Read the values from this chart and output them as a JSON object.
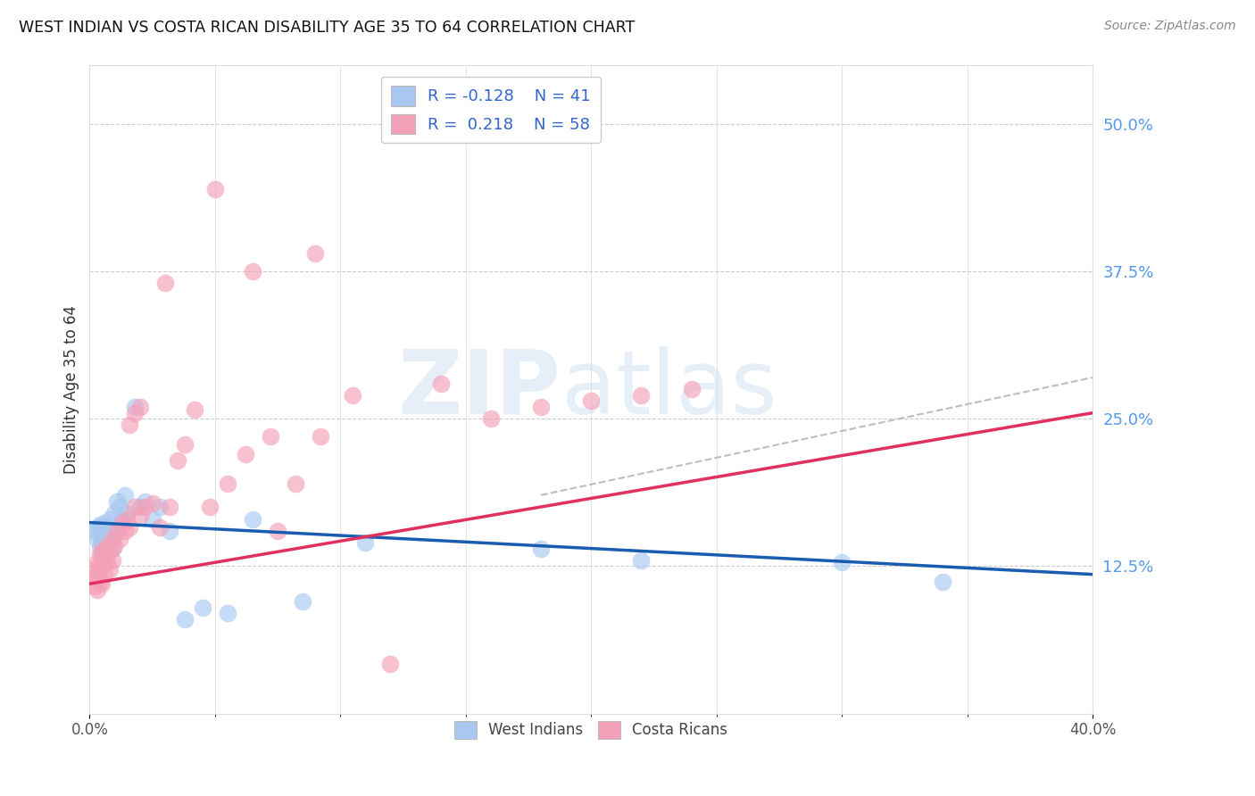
{
  "title": "WEST INDIAN VS COSTA RICAN DISABILITY AGE 35 TO 64 CORRELATION CHART",
  "source": "Source: ZipAtlas.com",
  "ylabel": "Disability Age 35 to 64",
  "xlim": [
    0.0,
    0.4
  ],
  "ylim": [
    0.0,
    0.55
  ],
  "yticks_right": [
    0.125,
    0.25,
    0.375,
    0.5
  ],
  "ytick_labels_right": [
    "12.5%",
    "25.0%",
    "37.5%",
    "50.0%"
  ],
  "blue_color": "#A8C8F0",
  "pink_color": "#F4A0B8",
  "blue_line_color": "#1A5CB0",
  "pink_line_color": "#E03060",
  "dashed_line_color": "#B8A8B0",
  "wi_R": -0.128,
  "wi_N": 41,
  "cr_R": 0.218,
  "cr_N": 58,
  "west_indian_x": [
    0.002,
    0.003,
    0.003,
    0.004,
    0.004,
    0.004,
    0.005,
    0.005,
    0.005,
    0.006,
    0.006,
    0.007,
    0.007,
    0.007,
    0.008,
    0.008,
    0.009,
    0.009,
    0.01,
    0.01,
    0.011,
    0.012,
    0.013,
    0.014,
    0.015,
    0.018,
    0.02,
    0.022,
    0.025,
    0.028,
    0.032,
    0.038,
    0.045,
    0.055,
    0.065,
    0.085,
    0.11,
    0.18,
    0.22,
    0.3,
    0.34
  ],
  "west_indian_y": [
    0.155,
    0.148,
    0.158,
    0.142,
    0.152,
    0.16,
    0.135,
    0.145,
    0.155,
    0.138,
    0.162,
    0.15,
    0.143,
    0.158,
    0.148,
    0.165,
    0.14,
    0.155,
    0.152,
    0.17,
    0.18,
    0.175,
    0.165,
    0.185,
    0.17,
    0.26,
    0.175,
    0.18,
    0.165,
    0.175,
    0.155,
    0.08,
    0.09,
    0.085,
    0.165,
    0.095,
    0.145,
    0.14,
    0.13,
    0.128,
    0.112
  ],
  "costa_rican_x": [
    0.001,
    0.002,
    0.002,
    0.003,
    0.003,
    0.003,
    0.004,
    0.004,
    0.004,
    0.005,
    0.005,
    0.005,
    0.006,
    0.006,
    0.007,
    0.007,
    0.008,
    0.008,
    0.009,
    0.009,
    0.01,
    0.011,
    0.012,
    0.013,
    0.014,
    0.015,
    0.016,
    0.018,
    0.02,
    0.022,
    0.025,
    0.028,
    0.03,
    0.032,
    0.035,
    0.038,
    0.042,
    0.048,
    0.055,
    0.065,
    0.075,
    0.09,
    0.105,
    0.12,
    0.14,
    0.16,
    0.18,
    0.2,
    0.22,
    0.24,
    0.05,
    0.062,
    0.072,
    0.082,
    0.092,
    0.016,
    0.018,
    0.02
  ],
  "costa_rican_y": [
    0.115,
    0.108,
    0.122,
    0.105,
    0.118,
    0.128,
    0.112,
    0.125,
    0.135,
    0.11,
    0.125,
    0.138,
    0.118,
    0.132,
    0.128,
    0.142,
    0.122,
    0.138,
    0.13,
    0.148,
    0.142,
    0.155,
    0.148,
    0.162,
    0.155,
    0.165,
    0.158,
    0.175,
    0.168,
    0.175,
    0.178,
    0.158,
    0.365,
    0.175,
    0.215,
    0.228,
    0.258,
    0.175,
    0.195,
    0.375,
    0.155,
    0.39,
    0.27,
    0.042,
    0.28,
    0.25,
    0.26,
    0.265,
    0.27,
    0.275,
    0.445,
    0.22,
    0.235,
    0.195,
    0.235,
    0.245,
    0.255,
    0.26
  ]
}
